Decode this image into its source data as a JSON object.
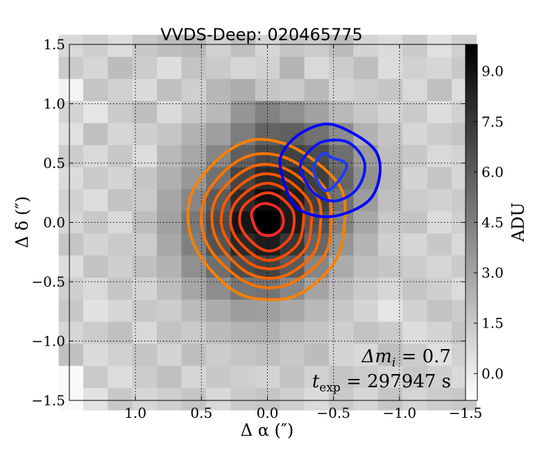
{
  "chart_data": {
    "type": "heatmap",
    "title": "VVDS-Deep: 020465775",
    "xlabel": "Δ α  (″)",
    "ylabel": "Δ δ  (″)",
    "xlim": [
      1.5,
      -1.5
    ],
    "ylim": [
      -1.5,
      1.5
    ],
    "x_ticks": [
      1.0,
      0.5,
      0.0,
      -0.5,
      -1.0,
      -1.5
    ],
    "x_tick_labels": [
      "1.0",
      "0.5",
      "0.0",
      "−0.5",
      "−1.0",
      "−1.5"
    ],
    "y_ticks": [
      -1.5,
      -1.0,
      -0.5,
      0.0,
      0.5,
      1.0,
      1.5
    ],
    "y_tick_labels": [
      "−1.5",
      "−1.0",
      "−0.5",
      "0.0",
      "0.5",
      "1.0",
      "1.5"
    ],
    "grid": true,
    "colorbar": {
      "label": "ADU",
      "min": -0.8,
      "max": 9.8,
      "ticks": [
        0.0,
        1.5,
        3.0,
        4.5,
        6.0,
        7.5,
        9.0
      ],
      "tick_labels": [
        "0.0",
        "1.5",
        "3.0",
        "4.5",
        "6.0",
        "7.5",
        "9.0"
      ]
    },
    "pixel_grid": {
      "size": 17,
      "pixel_arcsec": 0.186,
      "values": [
        [
          0.8,
          1.2,
          0.6,
          1.5,
          1.9,
          2.1,
          1.1,
          1.8,
          0.9,
          1.6,
          1.3,
          2.0,
          1.0,
          0.7,
          1.4,
          0.5,
          1.2
        ],
        [
          1.4,
          0.9,
          2.0,
          1.3,
          0.6,
          1.7,
          1.4,
          0.9,
          1.1,
          2.3,
          0.8,
          1.3,
          1.9,
          0.6,
          1.1,
          0.9,
          1.5
        ],
        [
          -0.3,
          1.6,
          1.1,
          0.7,
          1.8,
          1.2,
          2.2,
          2.6,
          1.6,
          1.4,
          2.1,
          1.0,
          1.3,
          1.6,
          0.8,
          1.8,
          0.6
        ],
        [
          1.0,
          0.3,
          1.4,
          1.9,
          0.7,
          1.5,
          2.1,
          3.6,
          4.4,
          3.8,
          3.1,
          2.1,
          1.5,
          1.0,
          1.4,
          0.6,
          1.1
        ],
        [
          0.5,
          1.8,
          0.9,
          1.2,
          1.6,
          2.4,
          3.2,
          4.6,
          5.7,
          5.8,
          5.1,
          4.0,
          2.4,
          1.7,
          0.9,
          1.3,
          1.6
        ],
        [
          1.3,
          0.8,
          1.5,
          0.6,
          2.1,
          2.8,
          4.2,
          5.8,
          6.8,
          7.0,
          6.6,
          5.2,
          3.4,
          1.9,
          1.5,
          0.8,
          1.0
        ],
        [
          0.7,
          1.4,
          1.0,
          1.6,
          2.5,
          3.5,
          5.1,
          6.9,
          8.1,
          8.0,
          7.2,
          5.6,
          3.8,
          2.1,
          1.0,
          1.6,
          0.9
        ],
        [
          1.1,
          0.6,
          1.7,
          1.4,
          2.9,
          4.2,
          6.0,
          8.0,
          9.3,
          8.6,
          7.1,
          5.1,
          3.3,
          1.8,
          1.3,
          1.1,
          1.4
        ],
        [
          0.9,
          1.5,
          0.8,
          1.9,
          3.1,
          4.8,
          6.6,
          8.9,
          9.8,
          8.7,
          6.4,
          4.4,
          2.8,
          1.5,
          1.7,
          0.7,
          1.2
        ],
        [
          1.6,
          1.0,
          1.4,
          1.3,
          2.8,
          4.5,
          6.3,
          8.1,
          8.6,
          7.5,
          5.5,
          3.6,
          2.3,
          1.2,
          0.9,
          1.5,
          0.8
        ],
        [
          0.6,
          1.7,
          1.2,
          1.8,
          2.4,
          3.8,
          5.2,
          6.6,
          7.0,
          6.0,
          4.2,
          2.7,
          1.8,
          1.6,
          1.3,
          0.9,
          1.4
        ],
        [
          1.2,
          0.8,
          1.6,
          1.0,
          1.9,
          2.9,
          3.9,
          4.9,
          5.0,
          4.2,
          3.0,
          2.0,
          1.4,
          0.9,
          1.6,
          1.2,
          0.7
        ],
        [
          1.5,
          0.4,
          0.9,
          1.5,
          1.3,
          2.0,
          2.7,
          3.3,
          3.2,
          2.8,
          2.1,
          1.5,
          1.0,
          0.3,
          1.1,
          1.7,
          1.3
        ],
        [
          0.9,
          1.3,
          1.8,
          0.8,
          1.7,
          1.4,
          2.0,
          2.3,
          2.4,
          1.9,
          1.6,
          1.2,
          1.7,
          1.4,
          0.6,
          1.0,
          1.6
        ],
        [
          1.8,
          0.7,
          1.1,
          1.6,
          1.0,
          1.9,
          1.3,
          1.6,
          1.8,
          1.5,
          2.0,
          1.0,
          0.8,
          1.9,
          1.3,
          0.5,
          1.1
        ],
        [
          -0.6,
          1.4,
          0.6,
          1.3,
          1.8,
          0.9,
          1.5,
          1.2,
          1.0,
          1.7,
          1.1,
          1.6,
          1.3,
          0.9,
          1.5,
          1.2,
          0.8
        ],
        [
          -0.5,
          0.4,
          1.5,
          0.9,
          1.2,
          1.6,
          0.8,
          1.4,
          1.6,
          1.2,
          0.7,
          1.4,
          0.9,
          1.6,
          1.0,
          1.3,
          1.5
        ]
      ]
    },
    "contours": [
      {
        "group": "orange",
        "color": "#ff8000",
        "points": [
          [
            0.6,
            0.0
          ],
          [
            0.55,
            0.3
          ],
          [
            0.3,
            0.6
          ],
          [
            0.05,
            0.7
          ],
          [
            -0.25,
            0.6
          ],
          [
            -0.55,
            0.3
          ],
          [
            -0.58,
            -0.05
          ],
          [
            -0.5,
            -0.35
          ],
          [
            -0.25,
            -0.6
          ],
          [
            0.0,
            -0.65
          ],
          [
            0.25,
            -0.58
          ],
          [
            0.5,
            -0.3
          ]
        ]
      },
      {
        "group": "orange",
        "color": "#ff7300",
        "points": [
          [
            0.5,
            0.0
          ],
          [
            0.45,
            0.26
          ],
          [
            0.25,
            0.5
          ],
          [
            0.03,
            0.58
          ],
          [
            -0.22,
            0.5
          ],
          [
            -0.45,
            0.26
          ],
          [
            -0.48,
            -0.05
          ],
          [
            -0.42,
            -0.3
          ],
          [
            -0.2,
            -0.5
          ],
          [
            0.0,
            -0.55
          ],
          [
            0.2,
            -0.48
          ],
          [
            0.42,
            -0.25
          ]
        ]
      },
      {
        "group": "orange",
        "color": "#ff6500",
        "points": [
          [
            0.42,
            0.0
          ],
          [
            0.38,
            0.22
          ],
          [
            0.2,
            0.42
          ],
          [
            0.02,
            0.49
          ],
          [
            -0.19,
            0.42
          ],
          [
            -0.38,
            0.21
          ],
          [
            -0.4,
            -0.04
          ],
          [
            -0.35,
            -0.26
          ],
          [
            -0.17,
            -0.43
          ],
          [
            0.0,
            -0.47
          ],
          [
            0.17,
            -0.41
          ],
          [
            0.35,
            -0.21
          ]
        ]
      },
      {
        "group": "orange",
        "color": "#ff5700",
        "points": [
          [
            0.35,
            0.0
          ],
          [
            0.31,
            0.19
          ],
          [
            0.16,
            0.35
          ],
          [
            0.01,
            0.41
          ],
          [
            -0.16,
            0.35
          ],
          [
            -0.32,
            0.17
          ],
          [
            -0.33,
            -0.03
          ],
          [
            -0.29,
            -0.22
          ],
          [
            -0.14,
            -0.36
          ],
          [
            0.0,
            -0.39
          ],
          [
            0.14,
            -0.34
          ],
          [
            0.29,
            -0.17
          ]
        ]
      },
      {
        "group": "orange",
        "color": "#ff4a00",
        "points": [
          [
            0.28,
            0.0
          ],
          [
            0.25,
            0.15
          ],
          [
            0.13,
            0.28
          ],
          [
            0.0,
            0.33
          ],
          [
            -0.13,
            0.28
          ],
          [
            -0.26,
            0.14
          ],
          [
            -0.27,
            -0.02
          ],
          [
            -0.23,
            -0.18
          ],
          [
            -0.11,
            -0.29
          ],
          [
            0.0,
            -0.32
          ],
          [
            0.11,
            -0.27
          ],
          [
            0.23,
            -0.14
          ]
        ]
      },
      {
        "group": "orange",
        "color": "#ff3c14",
        "points": [
          [
            0.21,
            0.0
          ],
          [
            0.19,
            0.12
          ],
          [
            0.1,
            0.21
          ],
          [
            0.0,
            0.25
          ],
          [
            -0.1,
            0.21
          ],
          [
            -0.19,
            0.1
          ],
          [
            -0.2,
            -0.02
          ],
          [
            -0.17,
            -0.13
          ],
          [
            -0.08,
            -0.22
          ],
          [
            0.0,
            -0.24
          ],
          [
            0.08,
            -0.2
          ],
          [
            0.17,
            -0.1
          ]
        ]
      },
      {
        "group": "orange",
        "color": "#ff2a28",
        "points": [
          [
            0.12,
            0.05
          ],
          [
            0.1,
            0.12
          ],
          [
            0.02,
            0.16
          ],
          [
            -0.08,
            0.12
          ],
          [
            -0.12,
            0.03
          ],
          [
            -0.1,
            -0.06
          ],
          [
            -0.02,
            -0.11
          ],
          [
            0.07,
            -0.08
          ]
        ]
      },
      {
        "group": "blue",
        "color": "#0000ff",
        "points": [
          [
            -0.1,
            0.45
          ],
          [
            -0.12,
            0.6
          ],
          [
            -0.25,
            0.75
          ],
          [
            -0.45,
            0.83
          ],
          [
            -0.65,
            0.75
          ],
          [
            -0.82,
            0.6
          ],
          [
            -0.85,
            0.4
          ],
          [
            -0.78,
            0.2
          ],
          [
            -0.6,
            0.08
          ],
          [
            -0.4,
            0.05
          ],
          [
            -0.2,
            0.15
          ]
        ]
      },
      {
        "group": "blue",
        "color": "#0a14ff",
        "points": [
          [
            -0.25,
            0.45
          ],
          [
            -0.3,
            0.58
          ],
          [
            -0.42,
            0.68
          ],
          [
            -0.6,
            0.68
          ],
          [
            -0.72,
            0.55
          ],
          [
            -0.73,
            0.4
          ],
          [
            -0.65,
            0.25
          ],
          [
            -0.5,
            0.18
          ],
          [
            -0.35,
            0.25
          ]
        ]
      },
      {
        "group": "blue",
        "color": "#1a3cff",
        "points": [
          [
            -0.35,
            0.45
          ],
          [
            -0.42,
            0.58
          ],
          [
            -0.48,
            0.55
          ],
          [
            -0.6,
            0.48
          ],
          [
            -0.5,
            0.3
          ],
          [
            -0.42,
            0.28
          ]
        ]
      }
    ],
    "annotations": [
      {
        "label": "Δm",
        "sub": "i",
        "suffix": " = 0.7"
      },
      {
        "label": "t",
        "sub": "exp",
        "suffix": " = 297947 s"
      }
    ]
  }
}
